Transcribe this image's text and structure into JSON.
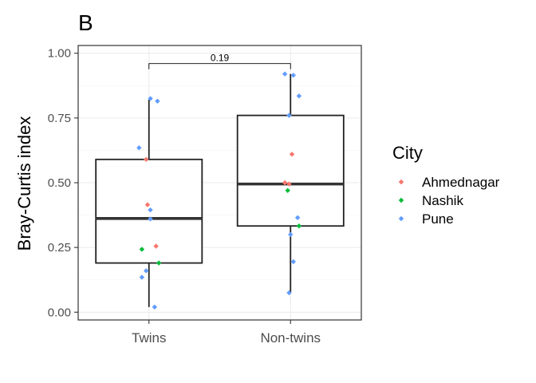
{
  "chart_data": {
    "type": "box",
    "panel_tag": "B",
    "ylabel": "Bray-Curtis index",
    "xlabel": "",
    "ylim": [
      -0.03,
      1.03
    ],
    "yticks": [
      0.0,
      0.25,
      0.5,
      0.75,
      1.0
    ],
    "ytick_labels": [
      "0.00",
      "0.25",
      "0.50",
      "0.75",
      "1.00"
    ],
    "grid": true,
    "categories": [
      "Twins",
      "Non-twins"
    ],
    "boxes": [
      {
        "category": "Twins",
        "q1": 0.19,
        "median": 0.362,
        "q3": 0.59,
        "whisker_low": 0.02,
        "whisker_high": 0.82
      },
      {
        "category": "Non-twins",
        "q1": 0.333,
        "median": 0.495,
        "q3": 0.76,
        "whisker_low": 0.075,
        "whisker_high": 0.92
      }
    ],
    "comparison": {
      "groups": [
        "Twins",
        "Non-twins"
      ],
      "label": "0.19",
      "y": 0.96
    },
    "legend": {
      "title": "City",
      "position": "right",
      "entries": [
        {
          "name": "Ahmednagar",
          "color": "#F8766D"
        },
        {
          "name": "Nashik",
          "color": "#00BA38"
        },
        {
          "name": "Pune",
          "color": "#619CFF"
        }
      ]
    },
    "points": [
      {
        "category": "Twins",
        "jitter": 0.01,
        "y": 0.825,
        "city": "Pune"
      },
      {
        "category": "Twins",
        "jitter": 0.06,
        "y": 0.815,
        "city": "Pune"
      },
      {
        "category": "Twins",
        "jitter": -0.07,
        "y": 0.635,
        "city": "Pune"
      },
      {
        "category": "Twins",
        "jitter": -0.02,
        "y": 0.59,
        "city": "Ahmednagar"
      },
      {
        "category": "Twins",
        "jitter": -0.01,
        "y": 0.415,
        "city": "Ahmednagar"
      },
      {
        "category": "Twins",
        "jitter": 0.01,
        "y": 0.395,
        "city": "Pune"
      },
      {
        "category": "Twins",
        "jitter": 0.01,
        "y": 0.36,
        "city": "Pune"
      },
      {
        "category": "Twins",
        "jitter": 0.05,
        "y": 0.255,
        "city": "Ahmednagar"
      },
      {
        "category": "Twins",
        "jitter": -0.05,
        "y": 0.243,
        "city": "Nashik"
      },
      {
        "category": "Twins",
        "jitter": 0.07,
        "y": 0.19,
        "city": "Nashik"
      },
      {
        "category": "Twins",
        "jitter": -0.02,
        "y": 0.16,
        "city": "Pune"
      },
      {
        "category": "Twins",
        "jitter": -0.05,
        "y": 0.135,
        "city": "Pune"
      },
      {
        "category": "Twins",
        "jitter": 0.04,
        "y": 0.02,
        "city": "Pune"
      },
      {
        "category": "Non-twins",
        "jitter": -0.04,
        "y": 0.92,
        "city": "Pune"
      },
      {
        "category": "Non-twins",
        "jitter": 0.02,
        "y": 0.915,
        "city": "Pune"
      },
      {
        "category": "Non-twins",
        "jitter": 0.06,
        "y": 0.835,
        "city": "Pune"
      },
      {
        "category": "Non-twins",
        "jitter": -0.01,
        "y": 0.76,
        "city": "Pune"
      },
      {
        "category": "Non-twins",
        "jitter": 0.01,
        "y": 0.61,
        "city": "Ahmednagar"
      },
      {
        "category": "Non-twins",
        "jitter": -0.04,
        "y": 0.5,
        "city": "Ahmednagar"
      },
      {
        "category": "Non-twins",
        "jitter": -0.01,
        "y": 0.495,
        "city": "Ahmednagar"
      },
      {
        "category": "Non-twins",
        "jitter": -0.02,
        "y": 0.47,
        "city": "Nashik"
      },
      {
        "category": "Non-twins",
        "jitter": 0.05,
        "y": 0.365,
        "city": "Pune"
      },
      {
        "category": "Non-twins",
        "jitter": 0.06,
        "y": 0.333,
        "city": "Nashik"
      },
      {
        "category": "Non-twins",
        "jitter": 0.0,
        "y": 0.3,
        "city": "Pune"
      },
      {
        "category": "Non-twins",
        "jitter": 0.02,
        "y": 0.195,
        "city": "Pune"
      },
      {
        "category": "Non-twins",
        "jitter": -0.01,
        "y": 0.075,
        "city": "Pune"
      }
    ]
  }
}
